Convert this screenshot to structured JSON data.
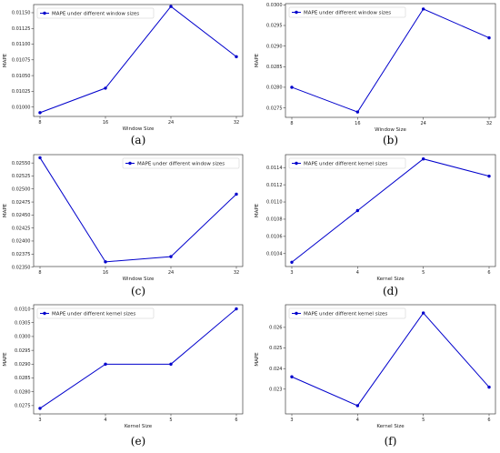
{
  "chart_data": [
    {
      "type": "line",
      "panel": "(a)",
      "x": [
        "8",
        "16",
        "24",
        "32"
      ],
      "series": [
        {
          "name": "MAPE under different window sizes",
          "values": [
            0.00991,
            0.0103,
            0.0116,
            0.0108
          ]
        }
      ],
      "xlabel": "Window Size",
      "ylabel": "MAPE",
      "ylim": [
        0.00985,
        0.01163
      ],
      "yticks": [
        0.01,
        0.01025,
        0.0105,
        0.01075,
        0.011,
        0.01125,
        0.0115
      ],
      "ytick_labels": [
        "0.01000",
        "0.01025",
        "0.01050",
        "0.01075",
        "0.01100",
        "0.01125",
        "0.01150"
      ],
      "legend": "upper-left",
      "grid": false
    },
    {
      "type": "line",
      "panel": "(b)",
      "x": [
        "8",
        "16",
        "24",
        "32"
      ],
      "series": [
        {
          "name": "MAPE under different window sizes",
          "values": [
            0.028,
            0.0274,
            0.0299,
            0.0292
          ]
        }
      ],
      "xlabel": "Window Size",
      "ylabel": "MAPE",
      "ylim": [
        0.02727,
        0.03003
      ],
      "yticks": [
        0.0275,
        0.028,
        0.0285,
        0.029,
        0.0295,
        0.03
      ],
      "ytick_labels": [
        "0.0275",
        "0.0280",
        "0.0285",
        "0.0290",
        "0.0295",
        "0.0300"
      ],
      "legend": "upper-left",
      "grid": false
    },
    {
      "type": "line",
      "panel": "(c)",
      "x": [
        "8",
        "16",
        "24",
        "32"
      ],
      "series": [
        {
          "name": "MAPE under different window sizes",
          "values": [
            0.0256,
            0.0236,
            0.0237,
            0.0249
          ]
        }
      ],
      "xlabel": "Window Size",
      "ylabel": "MAPE",
      "ylim": [
        0.02351,
        0.02566
      ],
      "yticks": [
        0.0235,
        0.02375,
        0.024,
        0.02425,
        0.0245,
        0.02475,
        0.025,
        0.02525,
        0.0255
      ],
      "ytick_labels": [
        "0.02350",
        "0.02375",
        "0.02400",
        "0.02425",
        "0.02450",
        "0.02475",
        "0.02500",
        "0.02525",
        "0.02550"
      ],
      "legend": "upper-right",
      "grid": false
    },
    {
      "type": "line",
      "panel": "(d)",
      "x": [
        "3",
        "4",
        "5",
        "6"
      ],
      "series": [
        {
          "name": "MAPE under different kernel sizes",
          "values": [
            0.0103,
            0.0109,
            0.0115,
            0.0113
          ]
        }
      ],
      "xlabel": "Kernel Size",
      "ylabel": "MAPE",
      "ylim": [
        0.01025,
        0.01155
      ],
      "yticks": [
        0.0104,
        0.0106,
        0.0108,
        0.011,
        0.0112,
        0.0114
      ],
      "ytick_labels": [
        "0.0104",
        "0.0106",
        "0.0108",
        "0.0110",
        "0.0112",
        "0.0114"
      ],
      "legend": "upper-left",
      "grid": false
    },
    {
      "type": "line",
      "panel": "(e)",
      "x": [
        "3",
        "4",
        "5",
        "6"
      ],
      "series": [
        {
          "name": "MAPE under different kernel sizes",
          "values": [
            0.0274,
            0.029,
            0.029,
            0.031
          ]
        }
      ],
      "xlabel": "Kernel Size",
      "ylabel": "MAPE",
      "ylim": [
        0.0272,
        0.03115
      ],
      "yticks": [
        0.0275,
        0.028,
        0.0285,
        0.029,
        0.0295,
        0.03,
        0.0305,
        0.031
      ],
      "ytick_labels": [
        "0.0275",
        "0.0280",
        "0.0285",
        "0.0290",
        "0.0295",
        "0.0300",
        "0.0305",
        "0.0310"
      ],
      "legend": "upper-left",
      "grid": false
    },
    {
      "type": "line",
      "panel": "(f)",
      "x": [
        "3",
        "4",
        "5",
        "6"
      ],
      "series": [
        {
          "name": "MAPE under different kernel sizes",
          "values": [
            0.0236,
            0.0222,
            0.0267,
            0.0231
          ]
        }
      ],
      "xlabel": "Kernel Size",
      "ylabel": "MAPE",
      "ylim": [
        0.0218,
        0.0271
      ],
      "yticks": [
        0.023,
        0.024,
        0.025,
        0.026
      ],
      "ytick_labels": [
        "0.023",
        "0.024",
        "0.025",
        "0.026"
      ],
      "legend": "upper-left",
      "grid": false
    }
  ],
  "colors": {
    "line": "#0000cc",
    "axis": "#222222",
    "label": "#000000"
  }
}
